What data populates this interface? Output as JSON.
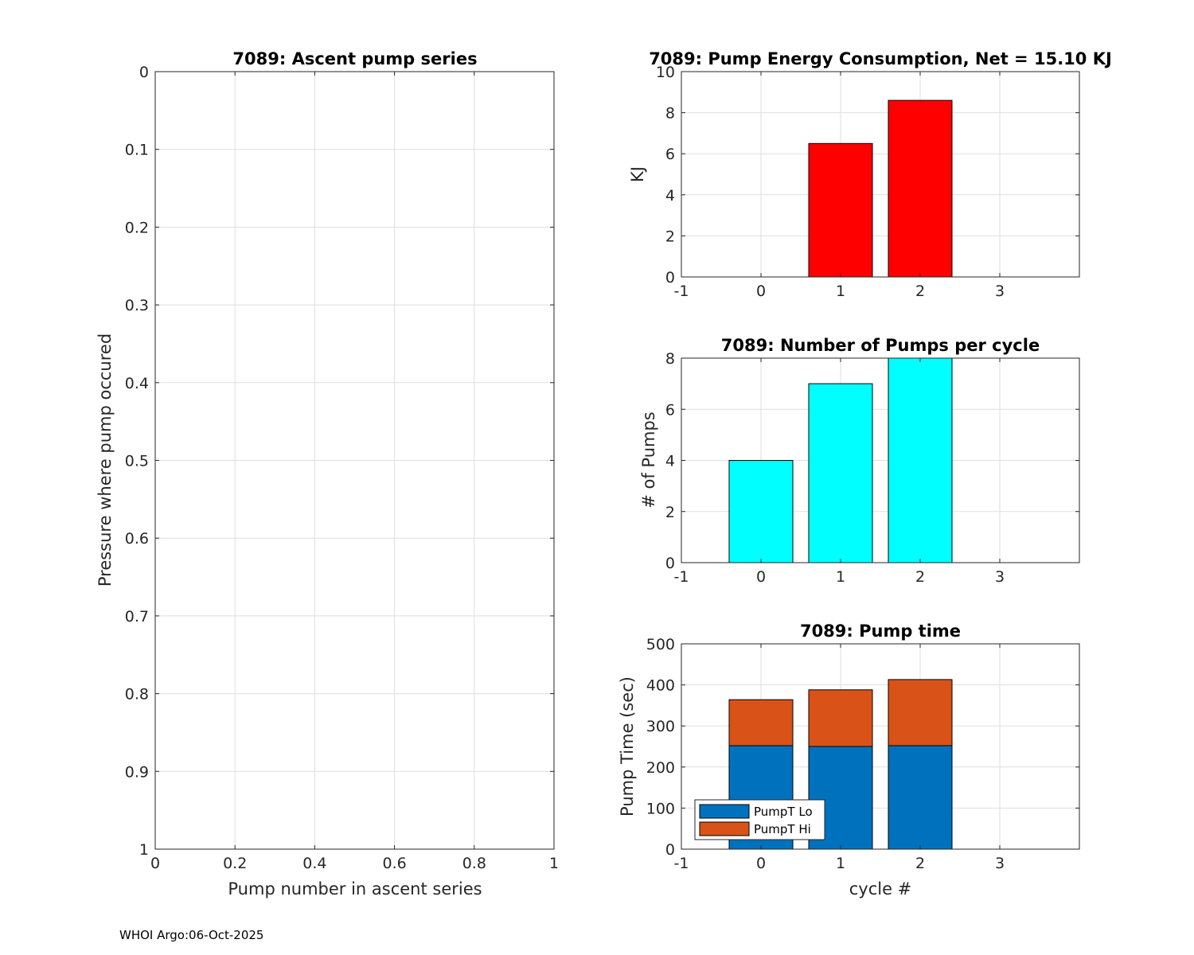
{
  "footer": "WHOI Argo:06-Oct-2025",
  "colors": {
    "energy": "#ff0000",
    "pumps": "#00ffff",
    "pump_lo": "#0072bd",
    "pump_hi": "#d95319",
    "grid": "#dfdfdf",
    "axis": "#262626"
  },
  "chart_data": [
    {
      "id": "ascent",
      "type": "scatter",
      "title": "7089: Ascent pump series",
      "xlabel": "Pump number in ascent series",
      "ylabel": "Pressure where pump occured",
      "xlim": [
        0,
        1
      ],
      "ylim": [
        0,
        1
      ],
      "y_reversed": true,
      "xticks": [
        0,
        0.2,
        0.4,
        0.6,
        0.8,
        1
      ],
      "xtick_labels": [
        "0",
        "0.2",
        "0.4",
        "0.6",
        "0.8",
        "1"
      ],
      "yticks": [
        0,
        0.1,
        0.2,
        0.3,
        0.4,
        0.5,
        0.6,
        0.7,
        0.8,
        0.9,
        1
      ],
      "ytick_labels": [
        "0",
        "0.1",
        "0.2",
        "0.3",
        "0.4",
        "0.5",
        "0.6",
        "0.7",
        "0.8",
        "0.9",
        "1"
      ],
      "grid": true,
      "points": []
    },
    {
      "id": "energy",
      "type": "bar",
      "title": "7089: Pump Energy Consumption,  Net =  15.10 KJ",
      "xlabel": "",
      "ylabel": "KJ",
      "xlim": [
        -1,
        4
      ],
      "ylim": [
        0,
        10
      ],
      "xticks": [
        -1,
        0,
        1,
        2,
        3
      ],
      "xtick_labels": [
        "-1",
        "0",
        "1",
        "2",
        "3"
      ],
      "yticks": [
        0,
        2,
        4,
        6,
        8,
        10
      ],
      "ytick_labels": [
        "0",
        "2",
        "4",
        "6",
        "8",
        "10"
      ],
      "grid": true,
      "x": [
        0,
        1,
        2
      ],
      "values": [
        0,
        6.5,
        8.6
      ]
    },
    {
      "id": "pumps",
      "type": "bar",
      "title": "7089: Number of Pumps per cycle",
      "xlabel": "",
      "ylabel": "# of Pumps",
      "xlim": [
        -1,
        4
      ],
      "ylim": [
        0,
        8
      ],
      "xticks": [
        -1,
        0,
        1,
        2,
        3
      ],
      "xtick_labels": [
        "-1",
        "0",
        "1",
        "2",
        "3"
      ],
      "yticks": [
        0,
        2,
        4,
        6,
        8
      ],
      "ytick_labels": [
        "0",
        "2",
        "4",
        "6",
        "8"
      ],
      "grid": true,
      "x": [
        0,
        1,
        2
      ],
      "values": [
        4,
        7,
        8
      ]
    },
    {
      "id": "pumptime",
      "type": "bar",
      "stacked": true,
      "title": "7089: Pump time",
      "xlabel": "cycle #",
      "ylabel": "Pump Time (sec)",
      "xlim": [
        -1,
        4
      ],
      "ylim": [
        0,
        500
      ],
      "xticks": [
        -1,
        0,
        1,
        2,
        3
      ],
      "xtick_labels": [
        "-1",
        "0",
        "1",
        "2",
        "3"
      ],
      "yticks": [
        0,
        100,
        200,
        300,
        400,
        500
      ],
      "ytick_labels": [
        "0",
        "100",
        "200",
        "300",
        "400",
        "500"
      ],
      "grid": true,
      "x": [
        0,
        1,
        2
      ],
      "series": [
        {
          "name": "PumpT Lo",
          "values": [
            252,
            250,
            252
          ]
        },
        {
          "name": "PumpT Hi",
          "values": [
            112,
            138,
            161
          ]
        }
      ],
      "legend": "bottom-left"
    }
  ]
}
